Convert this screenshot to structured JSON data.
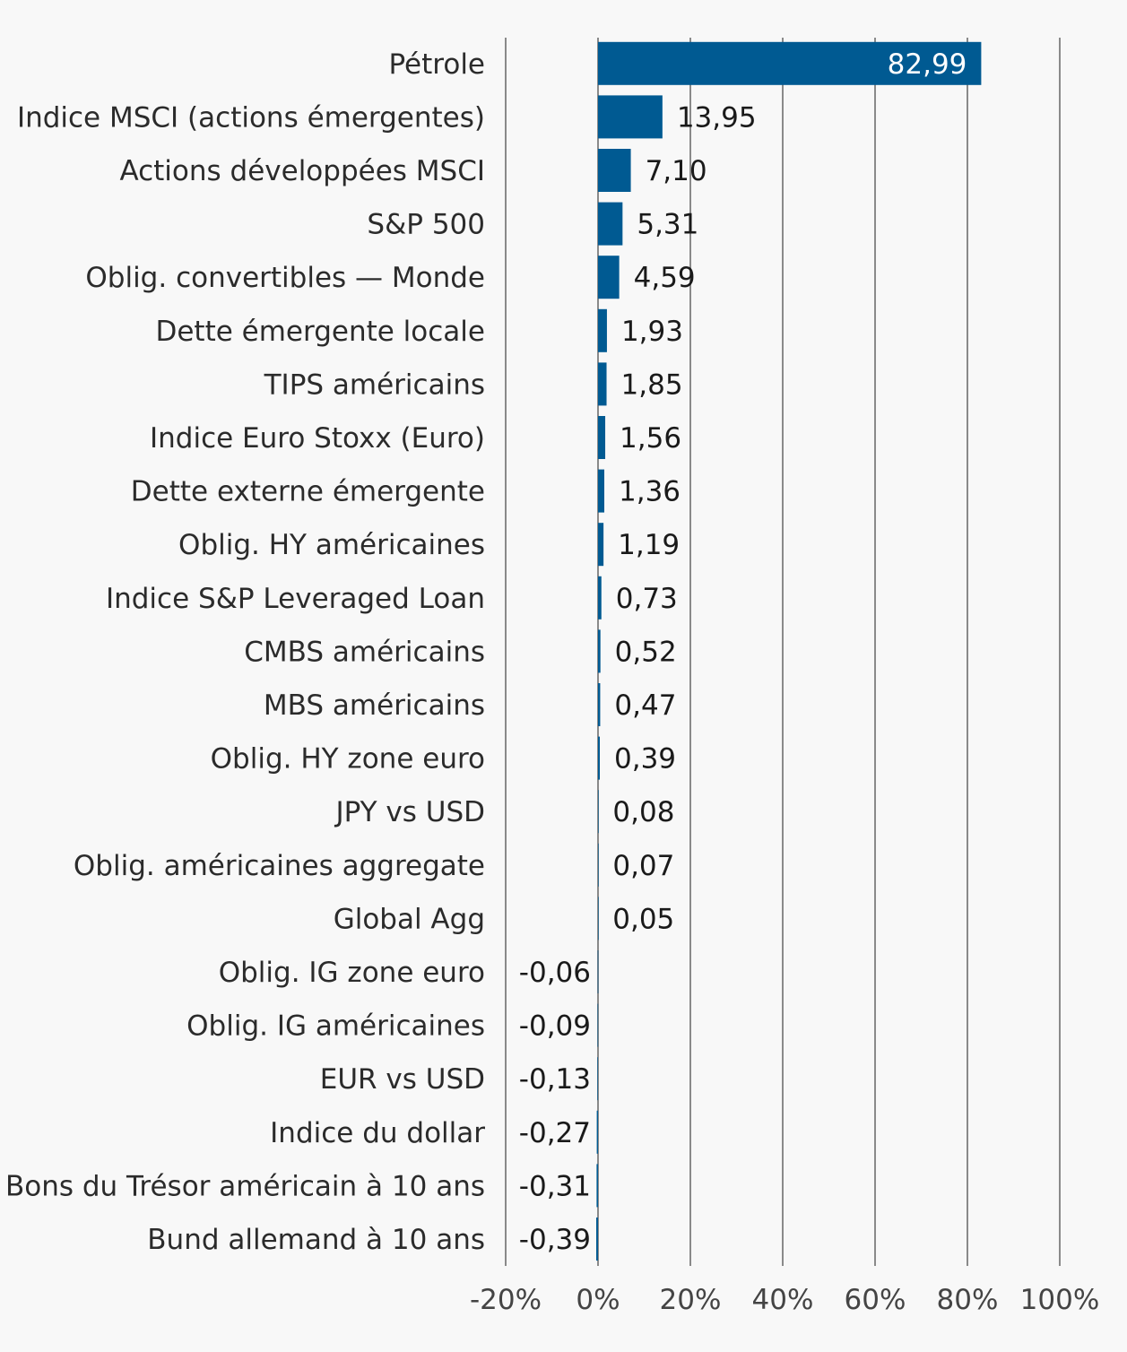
{
  "chart_data": {
    "type": "bar",
    "orientation": "horizontal",
    "title": "",
    "xlabel": "",
    "ylabel": "",
    "categories": [
      "Pétrole",
      "Indice MSCI (actions émergentes)",
      "Actions développées MSCI",
      "S&P 500",
      "Oblig. convertibles — Monde",
      "Dette émergente locale",
      "TIPS américains",
      "Indice Euro Stoxx (Euro)",
      "Dette externe émergente",
      "Oblig. HY américaines",
      "Indice S&P Leveraged Loan",
      "CMBS américains",
      "MBS américains",
      "Oblig. HY zone euro",
      "JPY vs USD",
      "Oblig. américaines aggregate",
      "Global Agg",
      "Oblig. IG zone euro",
      "Oblig. IG américaines",
      "EUR vs USD",
      "Indice du dollar",
      "Bons du Trésor américain à 10 ans",
      "Bund allemand à 10 ans"
    ],
    "values": [
      82.99,
      13.95,
      7.1,
      5.31,
      4.59,
      1.93,
      1.85,
      1.56,
      1.36,
      1.19,
      0.73,
      0.52,
      0.47,
      0.39,
      0.08,
      0.07,
      0.05,
      -0.06,
      -0.09,
      -0.13,
      -0.27,
      -0.31,
      -0.39
    ],
    "value_labels": [
      "82,99",
      "13,95",
      "7,10",
      "5,31",
      "4,59",
      "1,93",
      "1,85",
      "1,56",
      "1,36",
      "1,19",
      "0,73",
      "0,52",
      "0,47",
      "0,39",
      "0,08",
      "0,07",
      "0,05",
      "-0,06",
      "-0,09",
      "-0,13",
      "-0,27",
      "-0,31",
      "-0,39"
    ],
    "xlim": [
      -20,
      100
    ],
    "x_ticks": [
      -20,
      0,
      20,
      40,
      60,
      80,
      100
    ],
    "x_tick_labels": [
      "-20%",
      "0%",
      "20%",
      "40%",
      "60%",
      "80%",
      "100%"
    ],
    "grid": "vertical",
    "legend": "none",
    "bar_color": "#005a92"
  }
}
